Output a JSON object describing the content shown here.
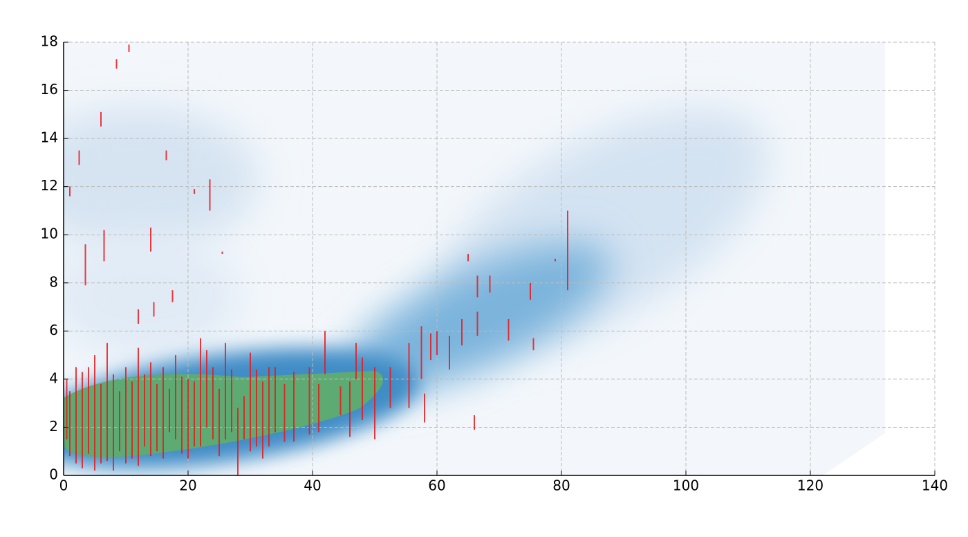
{
  "chart_data": {
    "type": "segments",
    "x": [
      8.5,
      10.5,
      6,
      2.5,
      16.5,
      23.5,
      21,
      6.5,
      3.5,
      14,
      17.5,
      12,
      14.5,
      25.5,
      1,
      65,
      66.5,
      68.5,
      75,
      81,
      79,
      75.5,
      59,
      57.5,
      60,
      62,
      64,
      66.5,
      71.5,
      47,
      42,
      52.5,
      50,
      55.5,
      58,
      66,
      44.5,
      39.5,
      35.5,
      31,
      28,
      30,
      33,
      26,
      22,
      24,
      20,
      18,
      16,
      14,
      12,
      10,
      8,
      6,
      5,
      4,
      3,
      2,
      1,
      0.5,
      7,
      9,
      11,
      13,
      15,
      17,
      19,
      21,
      23,
      25,
      27,
      29,
      32,
      34,
      37,
      41,
      46,
      48
    ],
    "ymin": [
      16.9,
      17.6,
      14.5,
      12.9,
      13.1,
      11,
      11.7,
      8.9,
      7.9,
      9.3,
      7.2,
      6.3,
      6.6,
      9.2,
      11.6,
      8.9,
      7.4,
      7.6,
      7.3,
      7.7,
      8.9,
      5.2,
      4.8,
      4,
      5,
      4.4,
      5.4,
      5.8,
      5.6,
      4,
      4.2,
      2.8,
      1.5,
      2.8,
      2.2,
      1.9,
      2.5,
      1.7,
      1.4,
      1.2,
      0,
      1,
      1.2,
      1.5,
      1.2,
      1.5,
      0.7,
      1.5,
      0.7,
      0.8,
      0.4,
      0.5,
      0.2,
      0.5,
      0.2,
      0.9,
      0.3,
      0.5,
      0.8,
      1.5,
      0.6,
      1,
      0.7,
      1.2,
      1,
      1.8,
      0.9,
      1.2,
      2,
      0.8,
      1.8,
      1.5,
      0.7,
      1.8,
      1.4,
      1.8,
      1.6,
      2.3
    ],
    "ymax": [
      17.3,
      17.9,
      15.1,
      13.5,
      13.5,
      12.3,
      11.9,
      10.2,
      9.6,
      10.3,
      7.7,
      6.9,
      7.2,
      9.3,
      12,
      9.2,
      8.3,
      8.3,
      8,
      11,
      9,
      5.7,
      5.9,
      6.2,
      6,
      5.8,
      6.5,
      6.8,
      6.5,
      5.5,
      6,
      4.5,
      4.5,
      5.5,
      3.4,
      2.5,
      3.7,
      4.5,
      3.8,
      4.4,
      2.8,
      5.1,
      4.5,
      5.5,
      5.7,
      4.5,
      4,
      5,
      4.5,
      4.7,
      5.3,
      4.5,
      4.2,
      3.8,
      5,
      4.5,
      4.3,
      4.5,
      3.5,
      4,
      5.5,
      3.5,
      3.9,
      4.2,
      3.8,
      3.6,
      4.1,
      3.9,
      5.2,
      3.6,
      4.4,
      3.3,
      3.9,
      4.5,
      4.3,
      3.8,
      3.9,
      4.9
    ],
    "color": "#e8191c",
    "xlim": [
      0,
      140
    ],
    "xticks": [
      0,
      20,
      40,
      60,
      80,
      100,
      120,
      140
    ],
    "ylim": [
      0,
      18
    ],
    "yticks": [
      0,
      2,
      4,
      6,
      8,
      10,
      12,
      14,
      16,
      18
    ],
    "grid": true
  }
}
